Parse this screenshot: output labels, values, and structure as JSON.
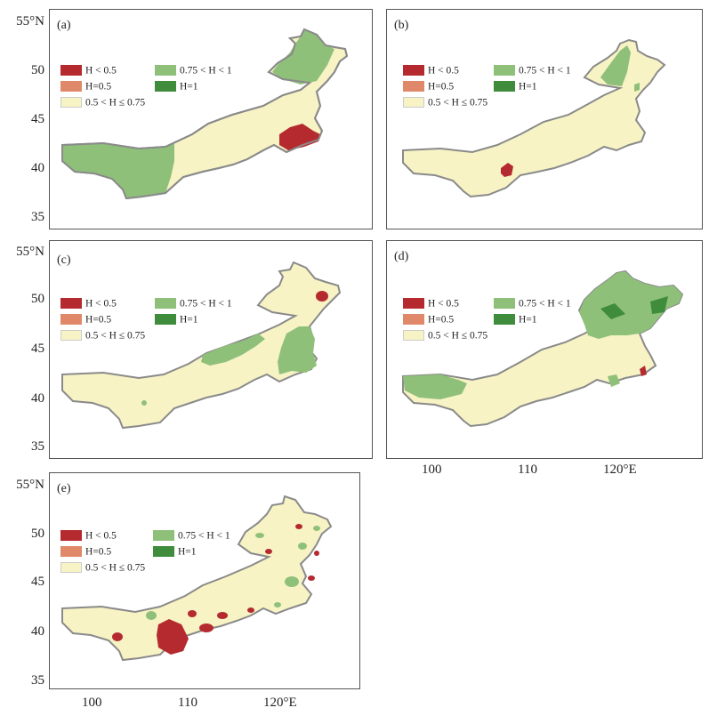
{
  "panels": [
    {
      "label": "(a)"
    },
    {
      "label": "(b)"
    },
    {
      "label": "(c)"
    },
    {
      "label": "(d)"
    },
    {
      "label": "(e)"
    }
  ],
  "legend": [
    {
      "text": "H < 0.5",
      "color": "#b52a2f"
    },
    {
      "text": "H=0.5",
      "color": "#e0896a"
    },
    {
      "text": "0.5 < H ≤ 0.75",
      "color": "#f7f3c4"
    },
    {
      "text": "0.75 < H < 1",
      "color": "#8fc07a"
    },
    {
      "text": "H=1",
      "color": "#3f8c3c"
    }
  ],
  "y_ticks": [
    "55°N",
    "50",
    "45",
    "40",
    "35"
  ],
  "x_ticks": [
    "100",
    "110",
    "120°E"
  ],
  "colors": {
    "region_fill": "#f7f3c4",
    "region_border": "#8a8a8a",
    "low": "#b52a2f",
    "high": "#8fc07a",
    "unity": "#3f8c3c"
  }
}
